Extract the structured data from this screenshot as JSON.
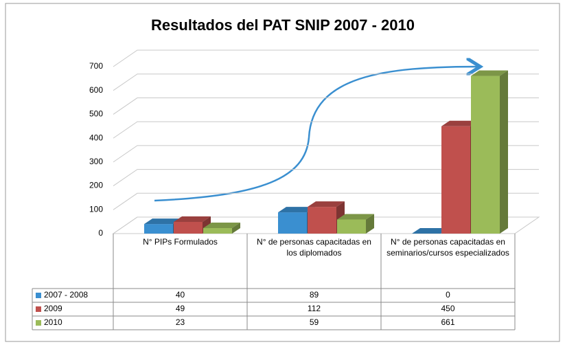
{
  "chart_data": {
    "type": "bar3d",
    "title": "Resultados del PAT SNIP  2007 - 2010",
    "categories": [
      "N° PIPs Formulados",
      "N° de personas capacitadas en los diplomados",
      "N° de personas capacitadas en seminarios/cursos especializados"
    ],
    "series": [
      {
        "name": "2007 - 2008",
        "color": "#3a8fd0",
        "values": [
          40,
          89,
          0
        ]
      },
      {
        "name": "2009",
        "color": "#c0504d",
        "values": [
          49,
          112,
          450
        ]
      },
      {
        "name": "2010",
        "color": "#9bbb59",
        "values": [
          23,
          59,
          661
        ]
      }
    ],
    "ylim": [
      0,
      700
    ],
    "yticks": [
      0,
      100,
      200,
      300,
      400,
      500,
      600,
      700
    ],
    "grid": true
  }
}
